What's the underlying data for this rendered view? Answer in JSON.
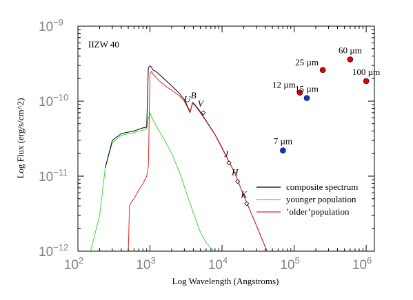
{
  "chart_data": {
    "type": "line",
    "title": "IIZW 40",
    "xlabel": "Log Wavelength (Angstroms)",
    "ylabel": "Log Flux (erg/s/cm^2)",
    "xscale": "log",
    "yscale": "log",
    "xlim": [
      100,
      1300000
    ],
    "ylim": [
      1e-12,
      1e-09
    ],
    "x_ticks": [
      {
        "base": "10",
        "exp": "2",
        "value": 100
      },
      {
        "base": "10",
        "exp": "3",
        "value": 1000
      },
      {
        "base": "10",
        "exp": "4",
        "value": 10000
      },
      {
        "base": "10",
        "exp": "5",
        "value": 100000
      },
      {
        "base": "10",
        "exp": "6",
        "value": 1000000
      }
    ],
    "y_ticks": [
      {
        "base": "10",
        "exp": "−12",
        "value": 1e-12
      },
      {
        "base": "10",
        "exp": "−11",
        "value": 1e-11
      },
      {
        "base": "10",
        "exp": "−10",
        "value": 1e-10
      },
      {
        "base": "10",
        "exp": "−9",
        "value": 1e-09
      }
    ],
    "legend_position": "lower-right",
    "series": [
      {
        "name": "composite spectrum",
        "color": "#000000",
        "x": [
          240,
          300,
          400,
          600,
          800,
          900,
          950,
          1000,
          1050,
          1100,
          1200,
          1400,
          1700,
          2000,
          2500,
          3000,
          3600,
          3900,
          4200,
          5000,
          6000,
          8000,
          10000,
          15000,
          20000,
          30000,
          42000
        ],
        "y": [
          1.3e-11,
          3e-11,
          3.7e-11,
          4e-11,
          4.4e-11,
          4.5e-11,
          2.8e-10,
          2.95e-10,
          2.85e-10,
          2.6e-10,
          2.5e-10,
          2.2e-10,
          1.85e-10,
          1.6e-10,
          1.3e-10,
          1.05e-10,
          7.2e-11,
          9.6e-11,
          9e-11,
          7.2e-11,
          5.5e-11,
          3.6e-11,
          2.4e-11,
          1.1e-11,
          5.5e-12,
          2.2e-12,
          1e-12
        ]
      },
      {
        "name": "younger population",
        "color": "#33dd33",
        "x": [
          150,
          200,
          240,
          300,
          400,
          600,
          800,
          900,
          950,
          1000,
          1050,
          1150,
          1300,
          1600,
          2000,
          2600,
          3200,
          4000,
          5000,
          6000,
          7000,
          7800
        ],
        "y": [
          1e-12,
          3e-12,
          1.3e-11,
          2.8e-11,
          3.5e-11,
          3.8e-11,
          4.1e-11,
          4.3e-11,
          6e-11,
          7e-11,
          6.2e-11,
          5.2e-11,
          4.2e-11,
          3e-11,
          2e-11,
          1.1e-11,
          6e-12,
          3.2e-12,
          1.8e-12,
          1.3e-12,
          1.1e-12,
          1e-12
        ]
      },
      {
        "name": "’older’population",
        "color": "#ee2222",
        "x": [
          500,
          520,
          550,
          600,
          700,
          800,
          900,
          950,
          1000,
          1050,
          1100,
          1200,
          1400,
          1700,
          2000,
          2500,
          3000,
          3600,
          3900,
          4200,
          5000,
          6000,
          8000,
          10000,
          15000,
          20000,
          30000,
          42000
        ],
        "y": [
          1e-12,
          4e-12,
          4.5e-12,
          5e-12,
          6.5e-12,
          8e-12,
          1e-11,
          1.35e-11,
          2.3e-10,
          2.5e-10,
          2.3e-10,
          2.1e-10,
          1.8e-10,
          1.55e-10,
          1.4e-10,
          1.2e-10,
          1e-10,
          7e-11,
          9.3e-11,
          8.8e-11,
          7e-11,
          5.4e-11,
          3.55e-11,
          2.35e-11,
          1.1e-11,
          5.5e-12,
          2.2e-12,
          1e-12
        ]
      }
    ],
    "photometry": [
      {
        "label": "U",
        "band": true,
        "marker": "none",
        "x": 3600,
        "y": 8e-11,
        "label_anchor": "above"
      },
      {
        "label": "B",
        "band": true,
        "marker": "none",
        "x": 4400,
        "y": 9e-11,
        "label_anchor": "above"
      },
      {
        "label": "V",
        "band": true,
        "marker": "diamond",
        "x": 5500,
        "y": 7e-11,
        "label_anchor": "above"
      },
      {
        "label": "J",
        "band": true,
        "marker": "diamond",
        "x": 12500,
        "y": 1.5e-11,
        "label_anchor": "above"
      },
      {
        "label": "H",
        "band": true,
        "marker": "diamond",
        "x": 16500,
        "y": 8.5e-12,
        "label_anchor": "above"
      },
      {
        "label": "K",
        "band": true,
        "marker": "diamond",
        "x": 22000,
        "y": 4.3e-12,
        "label_anchor": "above"
      },
      {
        "label": "7 µm",
        "band": false,
        "marker": "blue",
        "x": 70000,
        "y": 2.2e-11,
        "label_anchor": "above"
      },
      {
        "label": "12 µm",
        "band": false,
        "marker": "red",
        "x": 120000,
        "y": 1.3e-10,
        "label_anchor": "left"
      },
      {
        "label": "15 µm",
        "band": false,
        "marker": "blue",
        "x": 150000,
        "y": 1.1e-10,
        "label_anchor": "above"
      },
      {
        "label": "25 µm",
        "band": false,
        "marker": "red",
        "x": 250000,
        "y": 2.6e-10,
        "label_anchor": "left"
      },
      {
        "label": "60 µm",
        "band": false,
        "marker": "red",
        "x": 600000,
        "y": 3.6e-10,
        "label_anchor": "above"
      },
      {
        "label": "100 µm",
        "band": false,
        "marker": "red",
        "x": 1000000,
        "y": 1.85e-10,
        "label_anchor": "above"
      }
    ],
    "marker_colors": {
      "red": "#dd0000",
      "blue": "#1133cc"
    }
  }
}
